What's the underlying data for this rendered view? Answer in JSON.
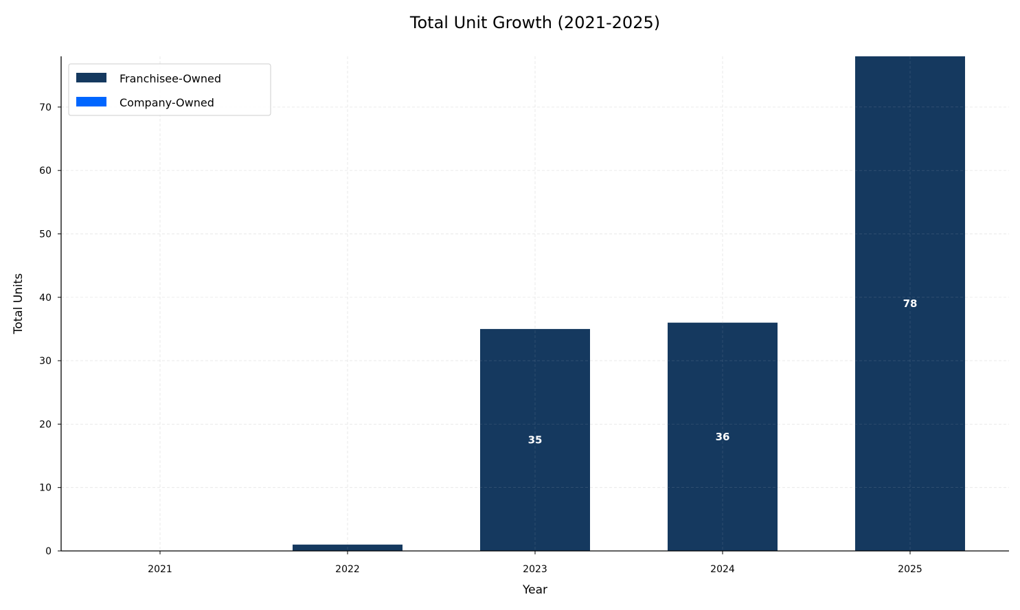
{
  "chart_data": {
    "type": "bar",
    "stacked": true,
    "title": "Total Unit Growth (2021-2025)",
    "xlabel": "Year",
    "ylabel": "Total Units",
    "categories": [
      "2021",
      "2022",
      "2023",
      "2024",
      "2025"
    ],
    "series": [
      {
        "name": "Franchisee-Owned",
        "color": "#15395f",
        "values": [
          0,
          1,
          35,
          36,
          78
        ]
      },
      {
        "name": "Company-Owned",
        "color": "#0066ff",
        "values": [
          0,
          0,
          0,
          0,
          0
        ]
      }
    ],
    "totals": [
      0,
      1,
      35,
      36,
      78
    ],
    "data_labels": [
      "",
      "",
      "35",
      "36",
      "78"
    ],
    "ylim": [
      0,
      78
    ],
    "yticks": [
      0,
      10,
      20,
      30,
      40,
      50,
      60,
      70
    ],
    "grid": true,
    "legend_position": "top-left"
  }
}
